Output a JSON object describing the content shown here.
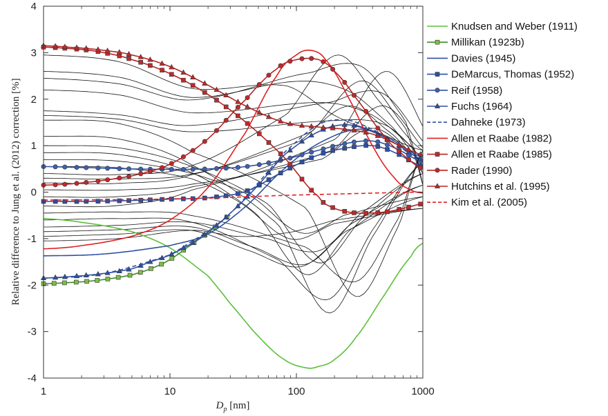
{
  "chart_data": {
    "type": "line",
    "xscale": "log",
    "xlim": [
      1,
      1000
    ],
    "ylim": [
      -4,
      4
    ],
    "xticks": [
      1,
      10,
      100,
      1000
    ],
    "xtick_labels": [
      "1",
      "10",
      "100",
      "1000"
    ],
    "yticks": [
      -4,
      -3,
      -2,
      -1,
      0,
      1,
      2,
      3,
      4
    ],
    "ytick_labels": [
      "-4",
      "-3",
      "-2",
      "-1",
      "0",
      "1",
      "2",
      "3",
      "4"
    ],
    "xlabel": "D",
    "xlabel_sub": "p",
    "xlabel_unit": " [nm]",
    "ylabel": "Relative difference to Jung et al. (2012) correction [%]",
    "grid": false,
    "legend_position": "outside-right",
    "series": [
      {
        "name": "Knudsen and Weber (1911)",
        "color": "#5bbf3a",
        "dash": "solid",
        "marker": "none",
        "x": [
          1,
          2,
          5,
          10,
          20,
          30,
          50,
          80,
          120,
          150,
          200,
          300,
          500,
          800,
          1000
        ],
        "y": [
          -0.57,
          -0.65,
          -0.85,
          -1.2,
          -1.8,
          -2.4,
          -3.1,
          -3.6,
          -3.78,
          -3.75,
          -3.6,
          -3.1,
          -2.2,
          -1.4,
          -1.1
        ]
      },
      {
        "name": "Millikan (1923b)",
        "color": "#3f8a2e",
        "dash": "solid",
        "marker": "square",
        "fill": "#7ac142",
        "x": [
          1,
          2,
          3,
          5,
          7,
          10,
          15,
          20,
          30
        ],
        "y": [
          -1.97,
          -1.93,
          -1.88,
          -1.78,
          -1.65,
          -1.45,
          -1.12,
          -0.87,
          -0.5
        ]
      },
      {
        "name": "Davies (1945)",
        "color": "#2e4fa3",
        "dash": "solid",
        "marker": "none",
        "x": [
          1,
          3,
          10,
          20,
          40,
          80,
          150,
          300,
          500,
          1000
        ],
        "y": [
          -1.37,
          -1.33,
          -1.15,
          -0.9,
          -0.3,
          0.5,
          1.05,
          1.35,
          1.2,
          0.75
        ]
      },
      {
        "name": "DeMarcus, Thomas (1952)",
        "color": "#2e4fa3",
        "dash": "solid",
        "marker": "square",
        "fill": "#2e4fa3",
        "x": [
          1,
          2,
          5,
          10,
          20,
          40,
          80,
          150,
          250,
          400,
          600,
          1000
        ],
        "y": [
          -0.2,
          -0.2,
          -0.18,
          -0.15,
          -0.12,
          0.02,
          0.45,
          0.8,
          0.95,
          1.0,
          0.85,
          0.55
        ]
      },
      {
        "name": "Reif (1958)",
        "color": "#2e4fa3",
        "dash": "solid",
        "marker": "circle",
        "fill": "#3f5fb0",
        "x": [
          1,
          2,
          5,
          10,
          20,
          40,
          80,
          150,
          250,
          400,
          600,
          1000
        ],
        "y": [
          0.55,
          0.53,
          0.5,
          0.49,
          0.5,
          0.55,
          0.7,
          0.9,
          1.05,
          1.1,
          0.95,
          0.65
        ]
      },
      {
        "name": "Fuchs (1964)",
        "color": "#2e4fa3",
        "dash": "solid",
        "marker": "triangle",
        "fill": "#2e4fa3",
        "x": [
          1,
          2,
          3,
          5,
          7,
          10,
          15,
          20,
          30,
          50,
          80,
          150,
          250,
          400,
          600,
          1000
        ],
        "y": [
          -1.85,
          -1.8,
          -1.75,
          -1.65,
          -1.5,
          -1.35,
          -1.1,
          -0.85,
          -0.45,
          0.15,
          0.8,
          1.3,
          1.45,
          1.3,
          1.05,
          0.7
        ]
      },
      {
        "name": "Dahneke (1973)",
        "color": "#2e4fa3",
        "dash": "dash",
        "marker": "none",
        "x": [
          1,
          3,
          10,
          20,
          30,
          50,
          80,
          150,
          250,
          400,
          600,
          1000
        ],
        "y": [
          -1.85,
          -1.75,
          -1.35,
          -0.85,
          -0.45,
          0.2,
          0.85,
          1.45,
          1.55,
          1.35,
          1.05,
          0.65
        ]
      },
      {
        "name": "Allen et Raabe (1982)",
        "color": "#e02020",
        "dash": "solid",
        "marker": "none",
        "x": [
          1,
          2,
          5,
          10,
          20,
          40,
          70,
          100,
          130,
          170,
          250,
          400,
          600,
          800,
          1000
        ],
        "y": [
          -1.22,
          -1.15,
          -0.95,
          -0.6,
          0.1,
          1.3,
          2.5,
          2.95,
          3.05,
          2.85,
          2.1,
          1.0,
          0.3,
          0.05,
          -0.02
        ]
      },
      {
        "name": "Allen et Raabe (1985)",
        "color": "#b82222",
        "dash": "solid",
        "marker": "square",
        "fill": "#c0292b",
        "x": [
          1,
          2,
          3,
          5,
          10,
          20,
          40,
          80,
          150,
          200,
          300,
          500,
          700,
          1000
        ],
        "y": [
          3.12,
          3.07,
          3.0,
          2.85,
          2.55,
          2.1,
          1.5,
          0.75,
          -0.1,
          -0.35,
          -0.45,
          -0.43,
          -0.35,
          -0.25
        ]
      },
      {
        "name": "Rader (1990)",
        "color": "#b82222",
        "dash": "solid",
        "marker": "circle",
        "fill": "#c0292b",
        "x": [
          1,
          2,
          5,
          10,
          20,
          40,
          70,
          100,
          150,
          200,
          300,
          500,
          700,
          1000
        ],
        "y": [
          0.15,
          0.2,
          0.35,
          0.6,
          1.15,
          2.0,
          2.65,
          2.85,
          2.85,
          2.6,
          2.0,
          1.2,
          0.8,
          0.5
        ]
      },
      {
        "name": "Hutchins et al. (1995)",
        "color": "#b82222",
        "dash": "solid",
        "marker": "triangle",
        "fill": "#c0292b",
        "x": [
          1,
          2,
          3,
          5,
          10,
          20,
          40,
          80,
          150,
          250,
          400,
          600,
          1000
        ],
        "y": [
          3.15,
          3.1,
          3.05,
          2.95,
          2.7,
          2.3,
          1.85,
          1.5,
          1.4,
          1.35,
          1.25,
          1.05,
          0.8
        ]
      },
      {
        "name": "Kim et al. (2005)",
        "color": "#e02020",
        "dash": "dash",
        "marker": "none",
        "x": [
          1,
          5,
          20,
          40,
          80,
          150,
          300,
          600,
          1000
        ],
        "y": [
          -0.17,
          -0.16,
          -0.13,
          -0.1,
          -0.07,
          -0.05,
          -0.03,
          -0.01,
          0.0
        ]
      }
    ]
  }
}
